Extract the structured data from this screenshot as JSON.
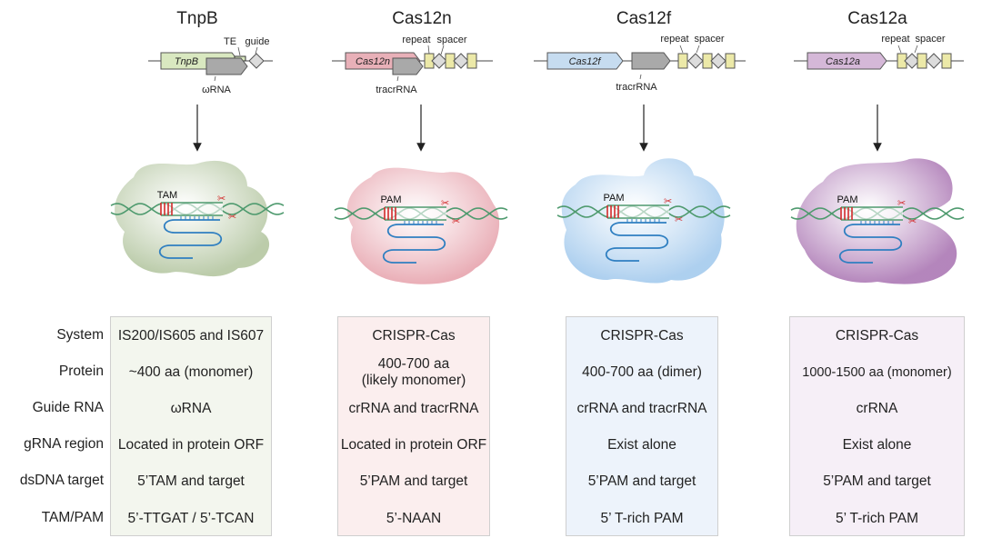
{
  "systems": [
    {
      "name": "TnpB",
      "gene_label": "TnpB",
      "labels": {
        "a": "TE",
        "b": "guide",
        "c": "ωRNA"
      },
      "complex_motif": "TAM",
      "color": "#b8c9a6",
      "box_color": "#f3f6ee",
      "cells": [
        "IS200/IS605 and IS607",
        "~400 aa (monomer)",
        "ωRNA",
        "Located in protein ORF",
        "5’TAM and target",
        "5’-TTGAT / 5’-TCAN"
      ]
    },
    {
      "name": "Cas12n",
      "gene_label": "Cas12n",
      "labels": {
        "a": "repeat",
        "b": "spacer",
        "c": "tracrRNA"
      },
      "complex_motif": "PAM",
      "color": "#e8a9b2",
      "box_color": "#fbeeee",
      "cells": [
        "CRISPR-Cas",
        "400-700 aa\n(likely monomer)",
        "crRNA and tracrRNA",
        "Located in protein ORF",
        "5’PAM and target",
        "5’-NAAN"
      ]
    },
    {
      "name": "Cas12f",
      "gene_label": "Cas12f",
      "labels": {
        "a": "repeat",
        "b": "spacer",
        "c": "tracrRNA"
      },
      "complex_motif": "PAM",
      "color": "#a9cdee",
      "box_color": "#edf3fb",
      "cells": [
        "CRISPR-Cas",
        "400-700 aa (dimer)",
        "crRNA and tracrRNA",
        "Exist alone",
        "5’PAM and target",
        "5’ T-rich PAM"
      ]
    },
    {
      "name": "Cas12a",
      "gene_label": "Cas12a",
      "labels": {
        "a": "repeat",
        "b": "spacer"
      },
      "complex_motif": "PAM",
      "color": "#b07fb8",
      "box_color": "#f6eff7",
      "cells": [
        "CRISPR-Cas",
        "1000-1500 aa (monomer)",
        "crRNA",
        "Exist alone",
        "5’PAM and target",
        "5’ T-rich PAM"
      ]
    }
  ],
  "row_labels": [
    "System",
    "Protein",
    "Guide RNA",
    "gRNA region",
    "dsDNA target",
    "TAM/PAM"
  ],
  "colors": {
    "dna": "#4e9a6e",
    "motif": "#d22a2a",
    "rna": "#2f7fc1",
    "repeat": "#ece9a8",
    "spacer": "#dcdcdc",
    "rna_gene": "#a9a9a9"
  }
}
